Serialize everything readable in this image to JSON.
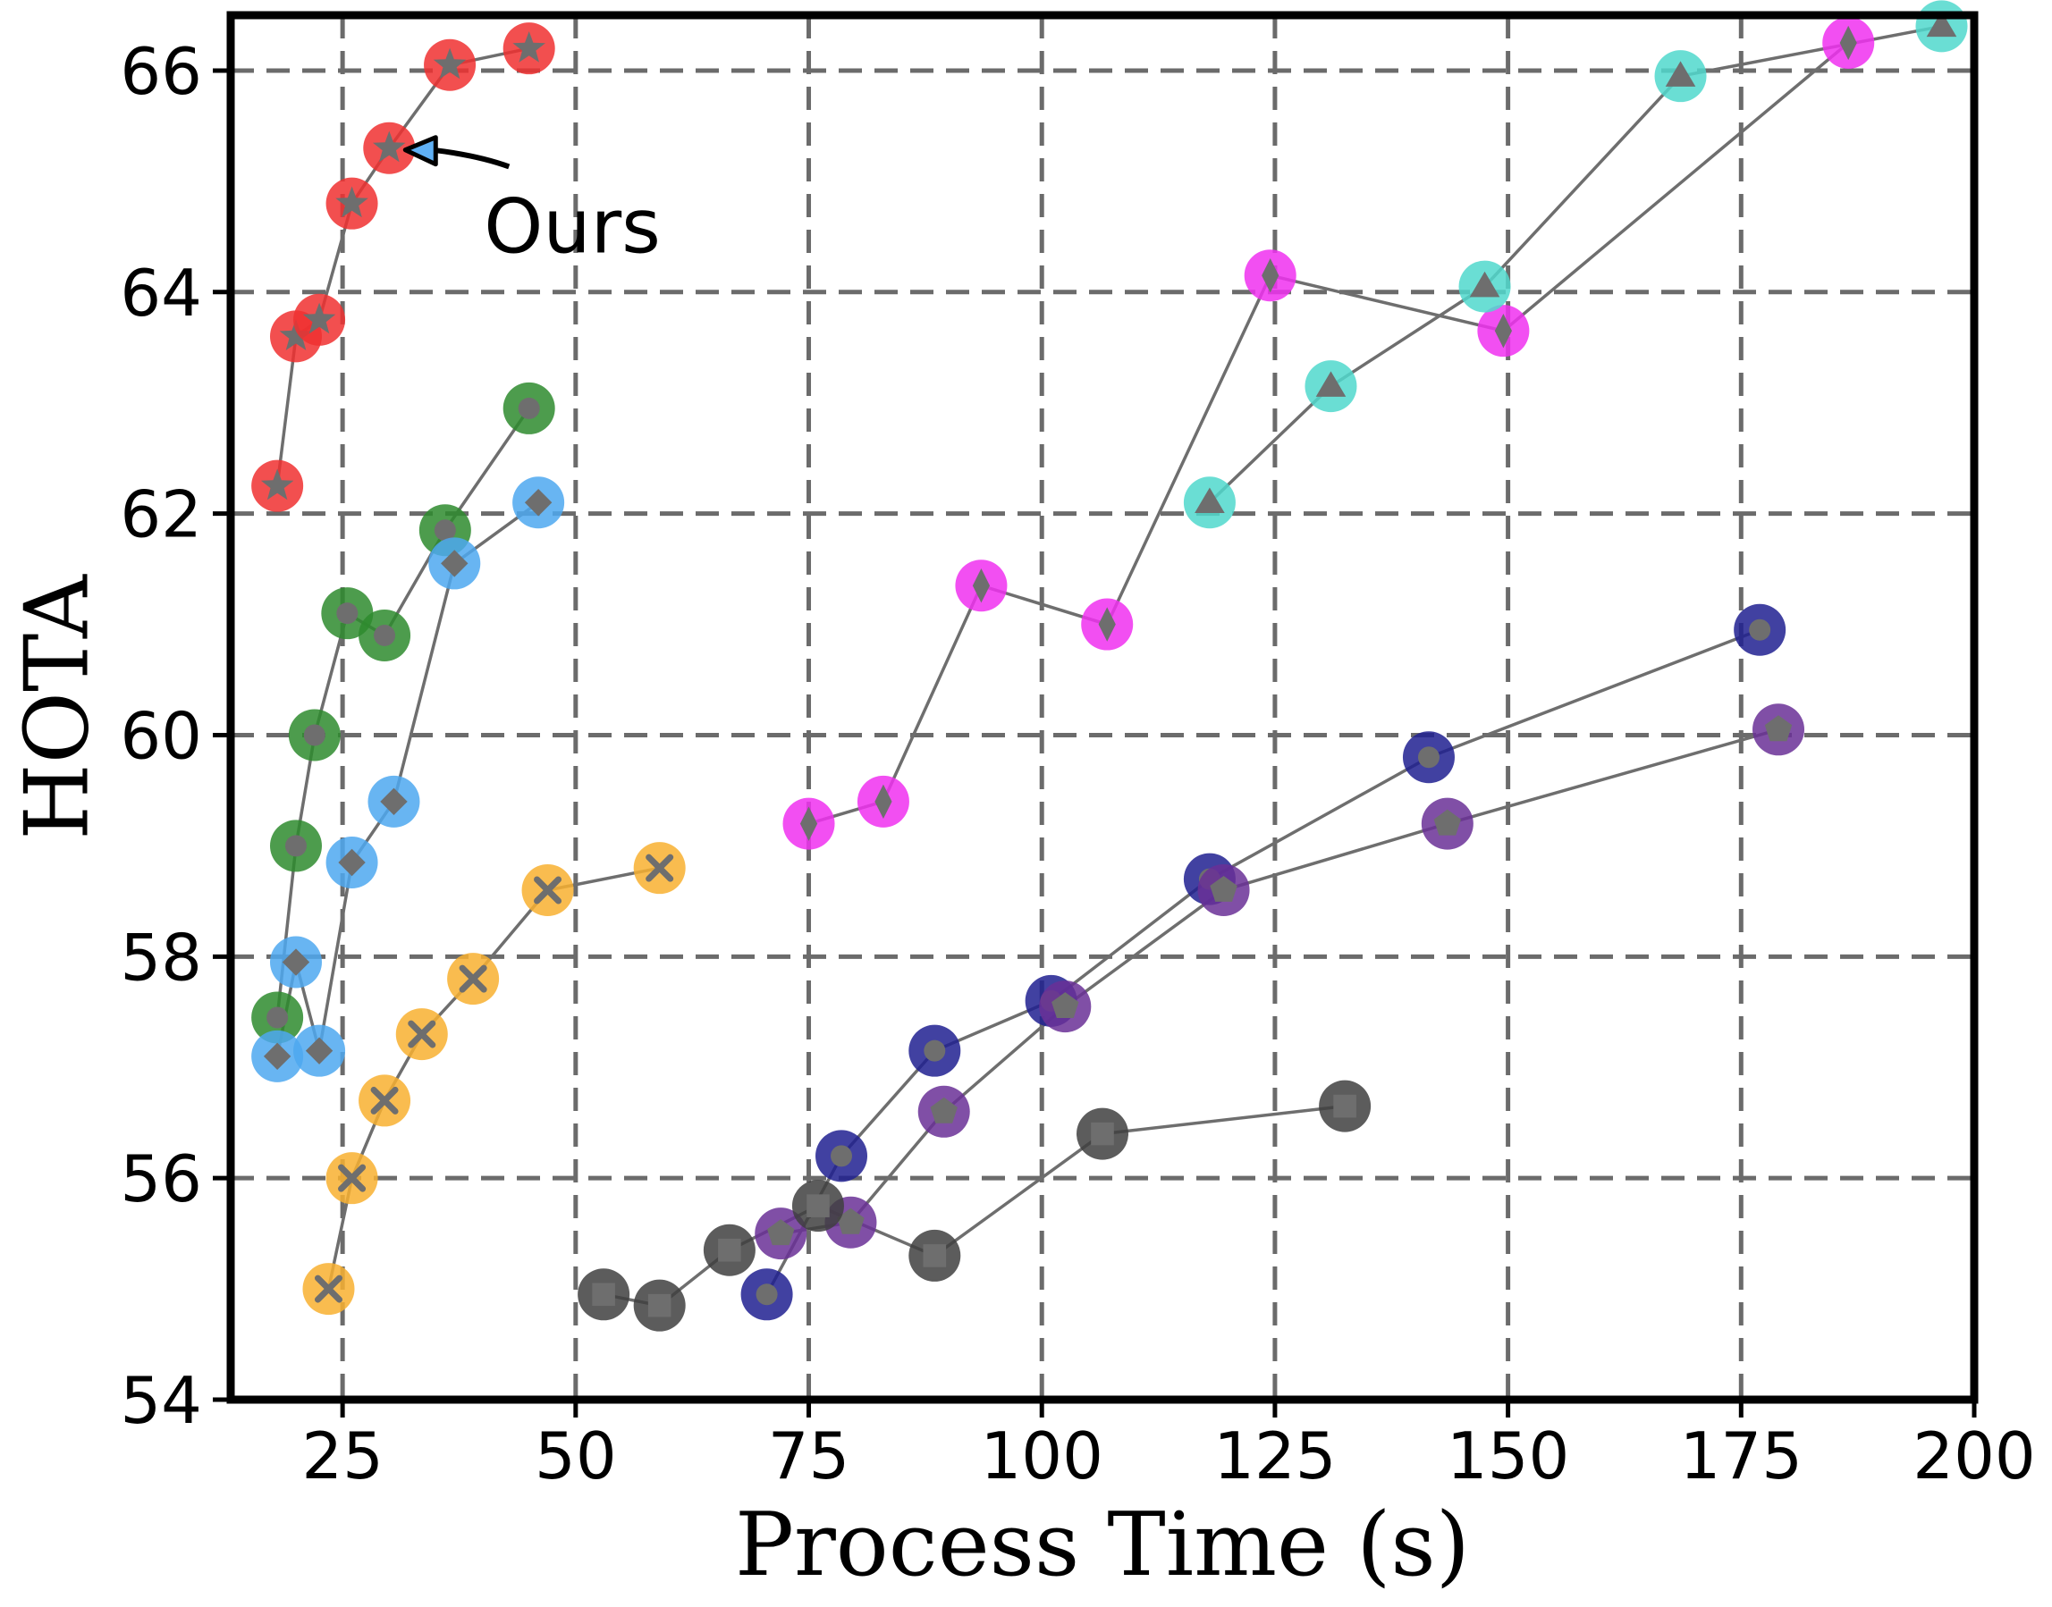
{
  "chart_data": {
    "type": "scatter",
    "title": "",
    "xlabel": "Process Time (s)",
    "ylabel": "HOTA",
    "xlim": [
      13,
      200
    ],
    "ylim": [
      54,
      66.5
    ],
    "xticks": [
      25,
      50,
      75,
      100,
      125,
      150,
      175,
      200
    ],
    "yticks": [
      54,
      56,
      58,
      60,
      62,
      64,
      66
    ],
    "grid": true,
    "legend": "none",
    "series": [
      {
        "color": "#f03030",
        "marker": "star",
        "points": [
          [
            18,
            62.25
          ],
          [
            20,
            63.6
          ],
          [
            22.5,
            63.75
          ],
          [
            26,
            64.8
          ],
          [
            30,
            65.3
          ],
          [
            36.5,
            66.05
          ],
          [
            45,
            66.2
          ]
        ]
      },
      {
        "color": "#2e8b2e",
        "marker": "circle",
        "points": [
          [
            18,
            57.45
          ],
          [
            20,
            59.0
          ],
          [
            22,
            60.0
          ],
          [
            25.5,
            61.1
          ],
          [
            29.5,
            60.9
          ],
          [
            36,
            61.85
          ],
          [
            45,
            62.95
          ]
        ]
      },
      {
        "color": "#4ea8f0",
        "marker": "diamond",
        "points": [
          [
            18,
            57.1
          ],
          [
            20,
            57.95
          ],
          [
            22.5,
            57.15
          ],
          [
            26,
            58.85
          ],
          [
            30.5,
            59.4
          ],
          [
            37,
            61.55
          ],
          [
            46,
            62.1
          ]
        ]
      },
      {
        "color": "#f8b030",
        "marker": "x",
        "points": [
          [
            23.5,
            55.0
          ],
          [
            26,
            56.0
          ],
          [
            29.5,
            56.7
          ],
          [
            33.5,
            57.3
          ],
          [
            39,
            57.8
          ],
          [
            47,
            58.6
          ],
          [
            59,
            58.8
          ]
        ]
      },
      {
        "color": "#f030f0",
        "marker": "thin-diamond",
        "points": [
          [
            75,
            59.2
          ],
          [
            83,
            59.4
          ],
          [
            93.5,
            61.35
          ],
          [
            107,
            61.0
          ],
          [
            124.5,
            64.15
          ],
          [
            149.5,
            63.65
          ],
          [
            186.5,
            66.25
          ]
        ]
      },
      {
        "color": "#50d8cc",
        "marker": "triangle",
        "points": [
          [
            118,
            62.1
          ],
          [
            131,
            63.15
          ],
          [
            147.5,
            64.05
          ],
          [
            168.5,
            65.95
          ],
          [
            196.5,
            66.4
          ]
        ]
      },
      {
        "color": "#202090",
        "marker": "circle",
        "points": [
          [
            70.5,
            54.95
          ],
          [
            78.5,
            56.2
          ],
          [
            88.5,
            57.15
          ],
          [
            101,
            57.6
          ],
          [
            118,
            58.7
          ],
          [
            141.5,
            59.8
          ],
          [
            177,
            60.95
          ]
        ]
      },
      {
        "color": "#6a3096",
        "marker": "pentagon",
        "points": [
          [
            72,
            55.5
          ],
          [
            79.5,
            55.6
          ],
          [
            89.5,
            56.6
          ],
          [
            102.5,
            57.55
          ],
          [
            119.5,
            58.6
          ],
          [
            143.5,
            59.2
          ],
          [
            179,
            60.05
          ]
        ]
      },
      {
        "color": "#404040",
        "marker": "square",
        "points": [
          [
            53,
            54.95
          ],
          [
            59,
            54.85
          ],
          [
            66.5,
            55.35
          ],
          [
            76,
            55.75
          ],
          [
            88.5,
            55.3
          ],
          [
            106.5,
            56.4
          ],
          [
            132.5,
            56.65
          ]
        ]
      }
    ],
    "annotations": [
      {
        "text": "Ours",
        "target": [
          30,
          65.3
        ],
        "text_at": [
          44,
          64.6
        ]
      }
    ]
  }
}
